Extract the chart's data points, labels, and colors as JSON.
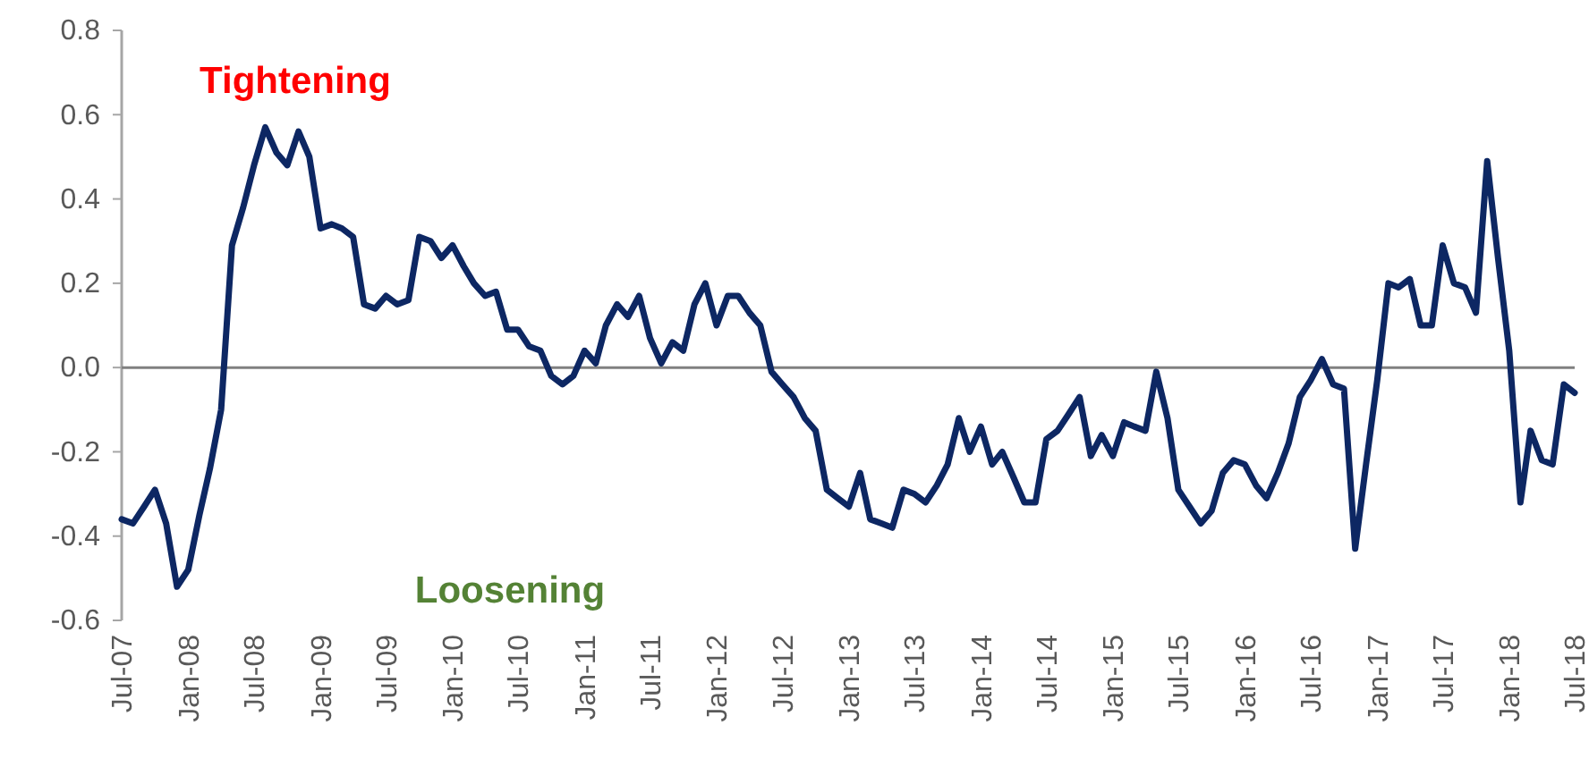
{
  "chart_data": {
    "type": "line",
    "annotations": [
      "Tightening",
      "Loosening"
    ],
    "x": [
      "2007-07",
      "2007-08",
      "2007-09",
      "2007-10",
      "2007-11",
      "2007-12",
      "2008-01",
      "2008-02",
      "2008-03",
      "2008-04",
      "2008-05",
      "2008-06",
      "2008-07",
      "2008-08",
      "2008-09",
      "2008-10",
      "2008-11",
      "2008-12",
      "2009-01",
      "2009-02",
      "2009-03",
      "2009-04",
      "2009-05",
      "2009-06",
      "2009-07",
      "2009-08",
      "2009-09",
      "2009-10",
      "2009-11",
      "2009-12",
      "2010-01",
      "2010-02",
      "2010-03",
      "2010-04",
      "2010-05",
      "2010-06",
      "2010-07",
      "2010-08",
      "2010-09",
      "2010-10",
      "2010-11",
      "2010-12",
      "2011-01",
      "2011-02",
      "2011-03",
      "2011-04",
      "2011-05",
      "2011-06",
      "2011-07",
      "2011-08",
      "2011-09",
      "2011-10",
      "2011-11",
      "2011-12",
      "2012-01",
      "2012-02",
      "2012-03",
      "2012-04",
      "2012-05",
      "2012-06",
      "2012-07",
      "2012-08",
      "2012-09",
      "2012-10",
      "2012-11",
      "2012-12",
      "2013-01",
      "2013-02",
      "2013-03",
      "2013-04",
      "2013-05",
      "2013-06",
      "2013-07",
      "2013-08",
      "2013-09",
      "2013-10",
      "2013-11",
      "2013-12",
      "2014-01",
      "2014-02",
      "2014-03",
      "2014-04",
      "2014-05",
      "2014-06",
      "2014-07",
      "2014-08",
      "2014-09",
      "2014-10",
      "2014-11",
      "2014-12",
      "2015-01",
      "2015-02",
      "2015-03",
      "2015-04",
      "2015-05",
      "2015-06",
      "2015-07",
      "2015-08",
      "2015-09",
      "2015-10",
      "2015-11",
      "2015-12",
      "2016-01",
      "2016-02",
      "2016-03",
      "2016-04",
      "2016-05",
      "2016-06",
      "2016-07",
      "2016-08",
      "2016-09",
      "2016-10",
      "2016-11",
      "2016-12",
      "2017-01",
      "2017-02",
      "2017-03",
      "2017-04",
      "2017-05",
      "2017-06",
      "2017-07",
      "2017-08",
      "2017-09",
      "2017-10",
      "2017-11",
      "2017-12",
      "2018-01",
      "2018-02",
      "2018-03",
      "2018-04",
      "2018-05",
      "2018-06",
      "2018-07"
    ],
    "series": [
      {
        "color": "#0d2763",
        "values": [
          -0.36,
          -0.37,
          -0.33,
          -0.29,
          -0.37,
          -0.52,
          -0.48,
          -0.35,
          -0.24,
          -0.1,
          0.29,
          0.38,
          0.48,
          0.57,
          0.51,
          0.48,
          0.56,
          0.5,
          0.33,
          0.34,
          0.33,
          0.31,
          0.15,
          0.14,
          0.17,
          0.15,
          0.16,
          0.31,
          0.3,
          0.26,
          0.29,
          0.24,
          0.2,
          0.17,
          0.18,
          0.09,
          0.09,
          0.05,
          0.04,
          -0.02,
          -0.04,
          -0.02,
          0.04,
          0.01,
          0.1,
          0.15,
          0.12,
          0.17,
          0.07,
          0.01,
          0.06,
          0.04,
          0.15,
          0.2,
          0.1,
          0.17,
          0.17,
          0.13,
          0.1,
          -0.01,
          -0.04,
          -0.07,
          -0.12,
          -0.15,
          -0.29,
          -0.31,
          -0.33,
          -0.25,
          -0.36,
          -0.37,
          -0.38,
          -0.29,
          -0.3,
          -0.32,
          -0.28,
          -0.23,
          -0.12,
          -0.2,
          -0.14,
          -0.23,
          -0.2,
          -0.26,
          -0.32,
          -0.32,
          -0.17,
          -0.15,
          -0.11,
          -0.07,
          -0.21,
          -0.16,
          -0.21,
          -0.13,
          -0.14,
          -0.15,
          -0.01,
          -0.12,
          -0.29,
          -0.33,
          -0.37,
          -0.34,
          -0.25,
          -0.22,
          -0.23,
          -0.28,
          -0.31,
          -0.25,
          -0.18,
          -0.07,
          -0.03,
          0.02,
          -0.04,
          -0.05,
          -0.43,
          -0.23,
          -0.03,
          0.2,
          0.19,
          0.21,
          0.1,
          0.1,
          0.29,
          0.2,
          0.19,
          0.13,
          0.49,
          0.26,
          0.04,
          -0.32,
          -0.15,
          -0.22,
          -0.23,
          -0.04,
          -0.06
        ]
      }
    ],
    "xlim": [
      "2007-07",
      "2018-07"
    ],
    "xticks": [
      {
        "value": "2007-07",
        "label": "Jul-07"
      },
      {
        "value": "2008-01",
        "label": "Jan-08"
      },
      {
        "value": "2008-07",
        "label": "Jul-08"
      },
      {
        "value": "2009-01",
        "label": "Jan-09"
      },
      {
        "value": "2009-07",
        "label": "Jul-09"
      },
      {
        "value": "2010-01",
        "label": "Jan-10"
      },
      {
        "value": "2010-07",
        "label": "Jul-10"
      },
      {
        "value": "2011-01",
        "label": "Jan-11"
      },
      {
        "value": "2011-07",
        "label": "Jul-11"
      },
      {
        "value": "2012-01",
        "label": "Jan-12"
      },
      {
        "value": "2012-07",
        "label": "Jul-12"
      },
      {
        "value": "2013-01",
        "label": "Jan-13"
      },
      {
        "value": "2013-07",
        "label": "Jul-13"
      },
      {
        "value": "2014-01",
        "label": "Jan-14"
      },
      {
        "value": "2014-07",
        "label": "Jul-14"
      },
      {
        "value": "2015-01",
        "label": "Jan-15"
      },
      {
        "value": "2015-07",
        "label": "Jul-15"
      },
      {
        "value": "2016-01",
        "label": "Jan-16"
      },
      {
        "value": "2016-07",
        "label": "Jul-16"
      },
      {
        "value": "2017-01",
        "label": "Jan-17"
      },
      {
        "value": "2017-07",
        "label": "Jul-17"
      },
      {
        "value": "2018-01",
        "label": "Jan-18"
      },
      {
        "value": "2018-07",
        "label": "Jul-18"
      }
    ],
    "ylim": [
      -0.6,
      0.8
    ],
    "yticks": [
      -0.6,
      -0.4,
      -0.2,
      {
        "value": 0,
        "label": "0.0"
      },
      0.2,
      0.4,
      0.6,
      0.8
    ],
    "ref_lines": [
      {
        "axis": "y",
        "value": 0,
        "color": "#808080"
      }
    ],
    "grid": false,
    "marker": "none",
    "line_style": "solid"
  }
}
